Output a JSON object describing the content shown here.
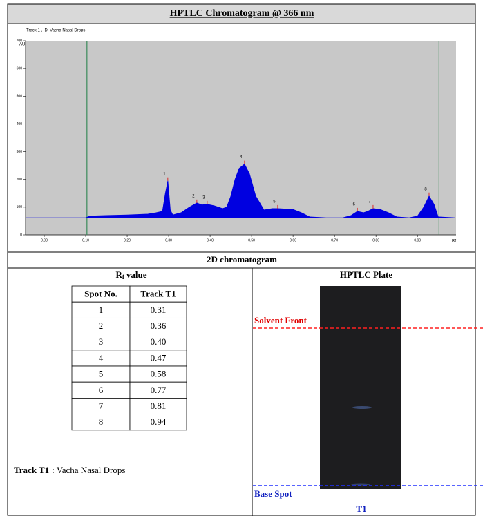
{
  "header": {
    "title": "HPTLC Chromatogram @ 366 nm"
  },
  "chart_data": {
    "type": "line",
    "subtitle": "Track 1 , ID: Vacha Nasal Drops",
    "ylabel": "AU",
    "xlabel": "Rf",
    "xlim": [
      -0.045,
      0.993
    ],
    "ylim": [
      0,
      700
    ],
    "xticks": [
      {
        "value": 0,
        "label": "0.00"
      },
      {
        "value": 0.1,
        "label": "0.10"
      },
      {
        "value": 0.2,
        "label": "0.20"
      },
      {
        "value": 0.3,
        "label": "0.30"
      },
      {
        "value": 0.4,
        "label": "0.40"
      },
      {
        "value": 0.5,
        "label": "0.50"
      },
      {
        "value": 0.6,
        "label": "0.60"
      },
      {
        "value": 0.7,
        "label": "0.70"
      },
      {
        "value": 0.8,
        "label": "0.80"
      },
      {
        "value": 0.9,
        "label": "0.90"
      }
    ],
    "yticks": [
      0,
      100,
      200,
      300,
      400,
      500,
      600,
      700
    ],
    "vlines": [
      0.103,
      0.952
    ],
    "color": "#0000e0",
    "x": [
      -0.045,
      0.0,
      0.1,
      0.11,
      0.15,
      0.2,
      0.25,
      0.27,
      0.285,
      0.292,
      0.298,
      0.304,
      0.31,
      0.33,
      0.35,
      0.368,
      0.38,
      0.393,
      0.41,
      0.43,
      0.44,
      0.45,
      0.46,
      0.47,
      0.483,
      0.495,
      0.51,
      0.53,
      0.55,
      0.563,
      0.6,
      0.62,
      0.64,
      0.68,
      0.72,
      0.74,
      0.755,
      0.77,
      0.78,
      0.793,
      0.81,
      0.83,
      0.85,
      0.88,
      0.9,
      0.915,
      0.928,
      0.94,
      0.95,
      0.99
    ],
    "values": [
      62,
      62,
      62,
      68,
      70,
      72,
      75,
      80,
      85,
      150,
      195,
      90,
      72,
      80,
      100,
      115,
      108,
      110,
      105,
      95,
      100,
      140,
      200,
      240,
      255,
      220,
      140,
      90,
      95,
      95,
      92,
      80,
      65,
      62,
      62,
      70,
      85,
      80,
      85,
      95,
      92,
      80,
      65,
      62,
      68,
      100,
      140,
      110,
      65,
      62
    ],
    "peaks": [
      {
        "label": "1",
        "x": 0.298,
        "y": 195
      },
      {
        "label": "2",
        "x": 0.368,
        "y": 115
      },
      {
        "label": "3",
        "x": 0.393,
        "y": 110
      },
      {
        "label": "4",
        "x": 0.483,
        "y": 255
      },
      {
        "label": "5",
        "x": 0.563,
        "y": 95
      },
      {
        "label": "6",
        "x": 0.755,
        "y": 85
      },
      {
        "label": "7",
        "x": 0.793,
        "y": 95
      },
      {
        "label": "8",
        "x": 0.928,
        "y": 140
      }
    ]
  },
  "section": {
    "title": "2D chromatogram"
  },
  "rf": {
    "heading": [
      "R",
      "f",
      "value"
    ],
    "table": {
      "columns": [
        "Spot No.",
        "Track T1"
      ],
      "rows": [
        [
          "1",
          "0.31"
        ],
        [
          "2",
          "0.36"
        ],
        [
          "3",
          "0.40"
        ],
        [
          "4",
          "0.47"
        ],
        [
          "5",
          "0.58"
        ],
        [
          "6",
          "0.77"
        ],
        [
          "7",
          "0.81"
        ],
        [
          "8",
          "0.94"
        ]
      ]
    },
    "note": {
      "label": "Track T1",
      "text": ": Vacha Nasal Drops"
    }
  },
  "plate": {
    "heading": "HPTLC Plate",
    "solvent_front": "Solvent Front",
    "base_spot": "Base Spot",
    "track": "T1"
  }
}
